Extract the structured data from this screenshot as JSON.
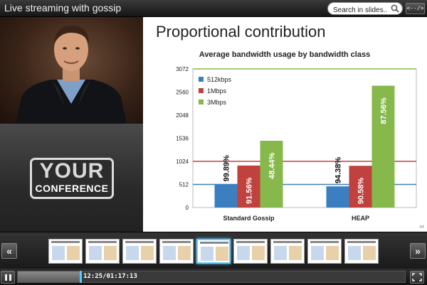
{
  "header": {
    "title": "Live streaming with gossip",
    "search_placeholder": "Search in slides...",
    "embed_label": "<--/>"
  },
  "branding": {
    "logo_line1": "YOUR",
    "logo_line2": "CONFERENCE"
  },
  "slide": {
    "title": "Proportional contribution",
    "page_number": "44"
  },
  "chart_data": {
    "type": "bar",
    "title": "Average bandwidth usage by bandwidth class",
    "categories": [
      "Standard Gossip",
      "HEAP"
    ],
    "series": [
      {
        "name": "512kbps",
        "color": "#3c7fc0",
        "values": [
          512,
          470
        ],
        "labels": [
          "99.89%",
          "94.38%"
        ]
      },
      {
        "name": "1Mbps",
        "color": "#c0413e",
        "values": [
          930,
          925
        ],
        "labels": [
          "91.56%",
          "90.58%"
        ]
      },
      {
        "name": "3Mbps",
        "color": "#86b84c",
        "values": [
          1480,
          2700
        ],
        "labels": [
          "48.44%",
          "87.56%"
        ]
      }
    ],
    "yticks": [
      "0",
      "512",
      "1024",
      "1536",
      "2048",
      "2560",
      "3072"
    ],
    "ylim": [
      0,
      3072
    ],
    "reference_lines": [
      {
        "value": 512,
        "color": "#3c7fc0"
      },
      {
        "value": 1024,
        "color": "#c0413e"
      },
      {
        "value": 3072,
        "color": "#86b84c"
      }
    ],
    "legend_position": "top-left"
  },
  "thumbnails": [
    {
      "active": false
    },
    {
      "active": false
    },
    {
      "active": false
    },
    {
      "active": false
    },
    {
      "active": true
    },
    {
      "active": false
    },
    {
      "active": false
    },
    {
      "active": false
    },
    {
      "active": false
    }
  ],
  "nav": {
    "prev_label": "«",
    "next_label": "»"
  },
  "player": {
    "current_time": "12:25",
    "total_time": "01:17:13",
    "timecode": "12:25/01:17:13",
    "progress": 0.161
  }
}
